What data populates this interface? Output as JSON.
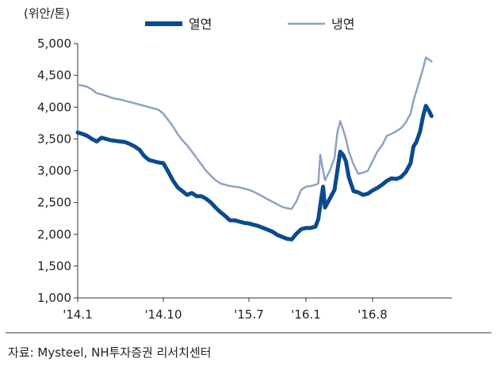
{
  "chart_data": {
    "type": "line",
    "unit_label": "(위안/톤)",
    "ylim": [
      1000,
      5000
    ],
    "y_ticks": [
      "1,000",
      "1,500",
      "2,000",
      "2,500",
      "3,000",
      "3,500",
      "4,000",
      "4,500",
      "5,000"
    ],
    "y_tick_values": [
      1000,
      1500,
      2000,
      2500,
      3000,
      3500,
      4000,
      4500,
      5000
    ],
    "x_ticks": [
      "'14.1",
      "'14.10",
      "'15.7",
      "'16.1",
      "'16.8"
    ],
    "x_tick_index": [
      0,
      9,
      18,
      24,
      31
    ],
    "x_range": [
      0,
      38.5
    ],
    "grid": false,
    "legend_position": "top",
    "series": [
      {
        "name": "열연",
        "color": "#0b4a8f",
        "points": [
          [
            0,
            3600
          ],
          [
            0.5,
            3580
          ],
          [
            1,
            3550
          ],
          [
            1.5,
            3500
          ],
          [
            2,
            3460
          ],
          [
            2.5,
            3520
          ],
          [
            3,
            3500
          ],
          [
            3.5,
            3480
          ],
          [
            4,
            3470
          ],
          [
            4.5,
            3460
          ],
          [
            5,
            3450
          ],
          [
            5.5,
            3420
          ],
          [
            6,
            3380
          ],
          [
            6.5,
            3330
          ],
          [
            7,
            3230
          ],
          [
            7.5,
            3170
          ],
          [
            8,
            3150
          ],
          [
            8.5,
            3130
          ],
          [
            9,
            3120
          ],
          [
            9.5,
            2990
          ],
          [
            10,
            2850
          ],
          [
            10.5,
            2740
          ],
          [
            11,
            2680
          ],
          [
            11.5,
            2620
          ],
          [
            12,
            2650
          ],
          [
            12.5,
            2600
          ],
          [
            13,
            2600
          ],
          [
            13.5,
            2560
          ],
          [
            14,
            2500
          ],
          [
            14.5,
            2420
          ],
          [
            15,
            2350
          ],
          [
            15.5,
            2290
          ],
          [
            16,
            2220
          ],
          [
            16.5,
            2220
          ],
          [
            17,
            2200
          ],
          [
            17.5,
            2180
          ],
          [
            18,
            2170
          ],
          [
            18.5,
            2150
          ],
          [
            19,
            2130
          ],
          [
            19.5,
            2100
          ],
          [
            20,
            2070
          ],
          [
            20.5,
            2040
          ],
          [
            21,
            1990
          ],
          [
            21.5,
            1960
          ],
          [
            22,
            1930
          ],
          [
            22.5,
            1920
          ],
          [
            23,
            2010
          ],
          [
            23.5,
            2080
          ],
          [
            24,
            2100
          ],
          [
            24.5,
            2100
          ],
          [
            25,
            2120
          ],
          [
            25.3,
            2240
          ],
          [
            25.6,
            2560
          ],
          [
            25.8,
            2750
          ],
          [
            26,
            2420
          ],
          [
            26.5,
            2560
          ],
          [
            27,
            2700
          ],
          [
            27.3,
            3000
          ],
          [
            27.6,
            3300
          ],
          [
            27.9,
            3250
          ],
          [
            28.2,
            3150
          ],
          [
            28.5,
            2900
          ],
          [
            29,
            2680
          ],
          [
            29.5,
            2660
          ],
          [
            30,
            2620
          ],
          [
            30.5,
            2640
          ],
          [
            31,
            2690
          ],
          [
            31.5,
            2730
          ],
          [
            32,
            2780
          ],
          [
            32.5,
            2840
          ],
          [
            33,
            2880
          ],
          [
            33.5,
            2870
          ],
          [
            34,
            2900
          ],
          [
            34.5,
            2980
          ],
          [
            35,
            3120
          ],
          [
            35.3,
            3380
          ],
          [
            35.6,
            3450
          ],
          [
            36,
            3620
          ],
          [
            36.3,
            3850
          ],
          [
            36.6,
            4020
          ],
          [
            36.9,
            3950
          ],
          [
            37.2,
            3860
          ]
        ]
      },
      {
        "name": "냉연",
        "color": "#8ea2c0",
        "points": [
          [
            0,
            4350
          ],
          [
            0.5,
            4340
          ],
          [
            1,
            4320
          ],
          [
            1.5,
            4280
          ],
          [
            2,
            4220
          ],
          [
            2.5,
            4200
          ],
          [
            3,
            4180
          ],
          [
            3.5,
            4150
          ],
          [
            4,
            4130
          ],
          [
            4.5,
            4120
          ],
          [
            5,
            4100
          ],
          [
            5.5,
            4080
          ],
          [
            6,
            4060
          ],
          [
            6.5,
            4040
          ],
          [
            7,
            4020
          ],
          [
            7.5,
            4000
          ],
          [
            8,
            3980
          ],
          [
            8.5,
            3960
          ],
          [
            9,
            3900
          ],
          [
            9.5,
            3800
          ],
          [
            10,
            3700
          ],
          [
            10.5,
            3580
          ],
          [
            11,
            3480
          ],
          [
            11.5,
            3400
          ],
          [
            12,
            3300
          ],
          [
            12.5,
            3200
          ],
          [
            13,
            3100
          ],
          [
            13.5,
            3000
          ],
          [
            14,
            2920
          ],
          [
            14.5,
            2850
          ],
          [
            15,
            2800
          ],
          [
            15.5,
            2780
          ],
          [
            16,
            2760
          ],
          [
            16.5,
            2750
          ],
          [
            17,
            2740
          ],
          [
            17.5,
            2720
          ],
          [
            18,
            2700
          ],
          [
            18.5,
            2670
          ],
          [
            19,
            2630
          ],
          [
            19.5,
            2590
          ],
          [
            20,
            2550
          ],
          [
            20.5,
            2510
          ],
          [
            21,
            2470
          ],
          [
            21.5,
            2430
          ],
          [
            22,
            2410
          ],
          [
            22.5,
            2400
          ],
          [
            23,
            2520
          ],
          [
            23.5,
            2700
          ],
          [
            24,
            2750
          ],
          [
            24.5,
            2760
          ],
          [
            25,
            2780
          ],
          [
            25.3,
            2800
          ],
          [
            25.5,
            3250
          ],
          [
            25.8,
            3000
          ],
          [
            26,
            2850
          ],
          [
            26.5,
            3000
          ],
          [
            27,
            3200
          ],
          [
            27.3,
            3600
          ],
          [
            27.6,
            3780
          ],
          [
            27.9,
            3650
          ],
          [
            28.2,
            3500
          ],
          [
            28.5,
            3300
          ],
          [
            29,
            3100
          ],
          [
            29.5,
            2950
          ],
          [
            30,
            2970
          ],
          [
            30.5,
            3000
          ],
          [
            31,
            3150
          ],
          [
            31.5,
            3300
          ],
          [
            32,
            3400
          ],
          [
            32.5,
            3550
          ],
          [
            33,
            3580
          ],
          [
            33.5,
            3620
          ],
          [
            34,
            3670
          ],
          [
            34.5,
            3760
          ],
          [
            35,
            3900
          ],
          [
            35.3,
            4100
          ],
          [
            35.6,
            4250
          ],
          [
            36,
            4450
          ],
          [
            36.3,
            4600
          ],
          [
            36.6,
            4780
          ],
          [
            36.9,
            4750
          ],
          [
            37.2,
            4720
          ]
        ]
      }
    ],
    "source_note": "자료: Mysteel, NH투자증권 리서치센터"
  }
}
